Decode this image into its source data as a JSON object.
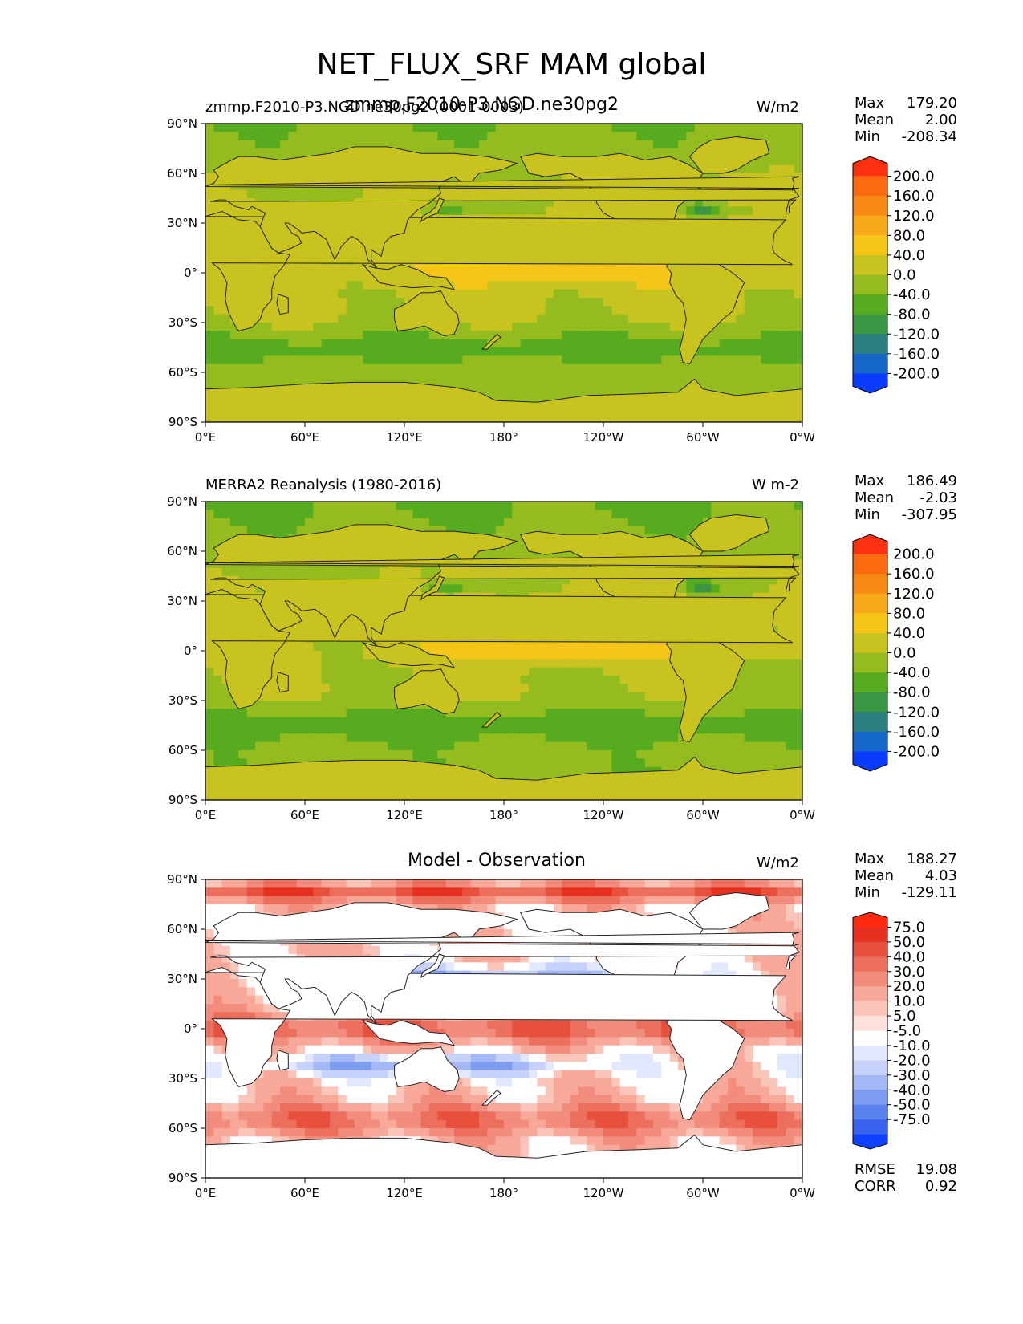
{
  "title": "NET_FLUX_SRF MAM global",
  "lat_ticks": [
    "90°N",
    "60°N",
    "30°N",
    "0°",
    "30°S",
    "60°S",
    "90°S"
  ],
  "lon_ticks": [
    "0°E",
    "60°E",
    "120°E",
    "180°",
    "120°W",
    "60°W",
    "0°W"
  ],
  "colors": {
    "field": [
      "#0a3cff",
      "#1466c8",
      "#2a8080",
      "#3a9642",
      "#57ab1f",
      "#94bc1e",
      "#c8c31e",
      "#f5c618",
      "#f8a91a",
      "#f78a14",
      "#fb6a10",
      "#ff3010"
    ],
    "diff": [
      "#1040ff",
      "#3a64f0",
      "#5a82ee",
      "#7e9cf0",
      "#a4b8f5",
      "#c6d2fa",
      "#e2e8fd",
      "#ffffff",
      "#fde0da",
      "#fbc6ba",
      "#f8a898",
      "#f28c7c",
      "#ec6e5c",
      "#e6503c",
      "#e53020",
      "#ff2a10"
    ]
  },
  "panels": [
    {
      "id": "model",
      "left_title": "zmmp.F2010-P3.NGD.ne30pg2 (0001-0003)",
      "center_title": "zmmp.F2010-P3.NGD.ne30pg2",
      "units": "W/m2",
      "stats": {
        "max": "179.20",
        "mean": "2.00",
        "min": "-208.34"
      },
      "colorbar_labels": [
        "200.0",
        "160.0",
        "120.0",
        "80.0",
        "40.0",
        "0.0",
        "-40.0",
        "-80.0",
        "-120.0",
        "-160.0",
        "-200.0"
      ]
    },
    {
      "id": "obs",
      "left_title": "MERRA2 Reanalysis (1980-2016)",
      "center_title": "",
      "units": "W m-2",
      "stats": {
        "max": "186.49",
        "mean": "-2.03",
        "min": "-307.95"
      },
      "colorbar_labels": [
        "200.0",
        "160.0",
        "120.0",
        "80.0",
        "40.0",
        "0.0",
        "-40.0",
        "-80.0",
        "-120.0",
        "-160.0",
        "-200.0"
      ]
    },
    {
      "id": "diff",
      "left_title": "",
      "center_title": "Model - Observation",
      "units": "W/m2",
      "stats": {
        "max": "188.27",
        "mean": "4.03",
        "min": "-129.11"
      },
      "colorbar_labels": [
        "75.0",
        "50.0",
        "40.0",
        "30.0",
        "20.0",
        "10.0",
        "5.0",
        "-5.0",
        "-10.0",
        "-20.0",
        "-30.0",
        "-40.0",
        "-50.0",
        "-75.0"
      ],
      "metrics": {
        "rmse_label": "RMSE",
        "rmse": "19.08",
        "corr_label": "CORR",
        "corr": "0.92"
      }
    }
  ],
  "chart_data": {
    "type": "heatmap",
    "title": "NET_FLUX_SRF MAM global",
    "projection": "equirectangular",
    "x_range": [
      0,
      360
    ],
    "y_range": [
      -90,
      90
    ],
    "panels": [
      {
        "name": "zmmp.F2010-P3.NGD.ne30pg2",
        "period": "0001-0003",
        "units": "W/m2",
        "max": 179.2,
        "mean": 2.0,
        "min": -208.34,
        "levels": [
          -200,
          -160,
          -120,
          -80,
          -40,
          0,
          40,
          80,
          120,
          160,
          200
        ]
      },
      {
        "name": "MERRA2 Reanalysis",
        "period": "1980-2016",
        "units": "W m-2",
        "max": 186.49,
        "mean": -2.03,
        "min": -307.95,
        "levels": [
          -200,
          -160,
          -120,
          -80,
          -40,
          0,
          40,
          80,
          120,
          160,
          200
        ]
      },
      {
        "name": "Model - Observation",
        "units": "W/m2",
        "max": 188.27,
        "mean": 4.03,
        "min": -129.11,
        "levels": [
          -75,
          -50,
          -40,
          -30,
          -20,
          -10,
          -5,
          5,
          10,
          20,
          30,
          40,
          50,
          75
        ],
        "rmse": 19.08,
        "corr": 0.92
      }
    ]
  }
}
